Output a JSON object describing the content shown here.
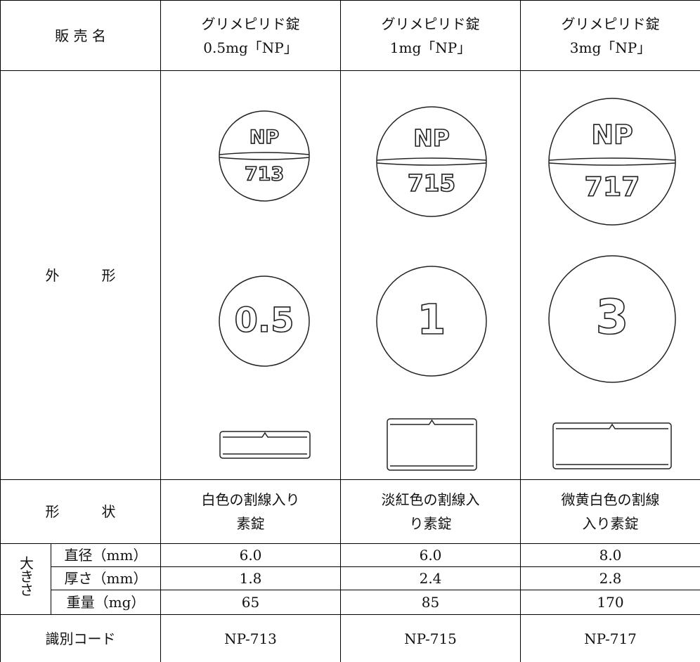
{
  "header": {
    "label": "販 売 名",
    "products": [
      [
        "グリメピリド錠",
        "0.5mg「NP」"
      ],
      [
        "グリメピリド錠",
        "1mg「NP」"
      ],
      [
        "グリメピリド錠",
        "3mg「NP」"
      ]
    ]
  },
  "appearance": {
    "label": "外　　　形",
    "tablets": [
      {
        "top": "NP",
        "bottom": "713",
        "face": "0.5"
      },
      {
        "top": "NP",
        "bottom": "715",
        "face": "1"
      },
      {
        "top": "NP",
        "bottom": "717",
        "face": "3"
      }
    ]
  },
  "shape": {
    "label": "形　　　状",
    "descriptions": [
      [
        "白色の割線入り",
        "素錠"
      ],
      [
        "淡紅色の割線入",
        "り素錠"
      ],
      [
        "微黄白色の割線",
        "入り素錠"
      ]
    ]
  },
  "size": {
    "label": "大きさ",
    "rows": [
      {
        "label": "直径（mm）",
        "values": [
          "6.0",
          "6.0",
          "8.0"
        ]
      },
      {
        "label": "厚さ（mm）",
        "values": [
          "1.8",
          "2.4",
          "2.8"
        ]
      },
      {
        "label": "重量（mg）",
        "values": [
          "65",
          "85",
          "170"
        ]
      }
    ]
  },
  "code": {
    "label": "識別コード",
    "values": [
      "NP-713",
      "NP-715",
      "NP-717"
    ]
  }
}
